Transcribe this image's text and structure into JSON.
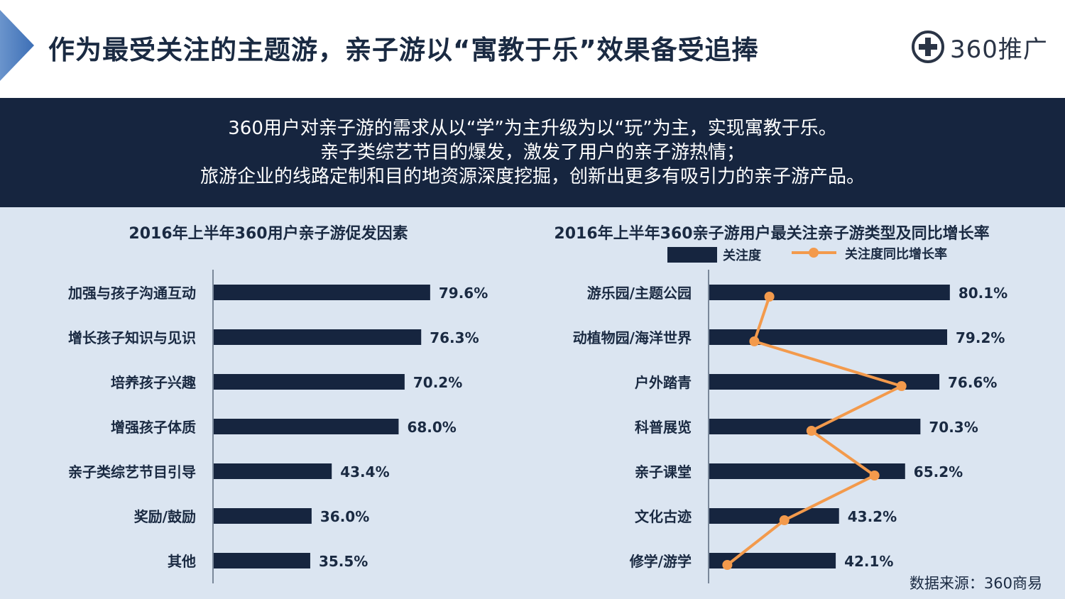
{
  "page": {
    "title": "作为最受关注的主题游，亲子游以“寓教于乐”效果备受追捧",
    "logo_text": "360推广",
    "summary_lines": [
      "360用户对亲子游的需求从以“学”为主升级为以“玩”为主，实现寓教于乐。",
      "亲子类综艺节目的爆发，激发了用户的亲子游热情；",
      "旅游企业的线路定制和目的地资源深度挖掘，创新出更多有吸引力的亲子游产品。"
    ],
    "source": "数据来源：360商易",
    "colors": {
      "bar": "#16253f",
      "line": "#f39a4c",
      "panel_bg": "#dbe5f1",
      "accent": "#3d6fb6"
    }
  },
  "chart_data": [
    {
      "type": "bar",
      "orientation": "horizontal",
      "title": "2016年上半年360用户亲子游促发因素",
      "categories": [
        "加强与孩子沟通互动",
        "增长孩子知识与见识",
        "培养孩子兴趣",
        "增强孩子体质",
        "亲子类综艺节目引导",
        "奖励/鼓励",
        "其他"
      ],
      "values": [
        79.6,
        76.3,
        70.2,
        68.0,
        43.4,
        36.0,
        35.5
      ],
      "labels": [
        "79.6%",
        "76.3%",
        "70.2%",
        "68.0%",
        "43.4%",
        "36.0%",
        "35.5%"
      ],
      "xlim": [
        0,
        100
      ],
      "unit": "%"
    },
    {
      "type": "bar+line",
      "orientation": "horizontal",
      "title": "2016年上半年360亲子游用户最关注亲子游类型及同比增长率",
      "legend": [
        "关注度",
        "关注度同比增长率"
      ],
      "legend_position": "top",
      "categories": [
        "游乐园/主题公园",
        "动植物园/海洋世界",
        "户外踏青",
        "科普展览",
        "亲子课堂",
        "文化古迹",
        "修学/游学"
      ],
      "series": [
        {
          "name": "关注度",
          "type": "bar",
          "values": [
            80.1,
            79.2,
            76.6,
            70.3,
            65.2,
            43.2,
            42.1
          ],
          "labels": [
            "80.1%",
            "79.2%",
            "76.6%",
            "70.3%",
            "65.2%",
            "43.2%",
            "42.1%"
          ]
        },
        {
          "name": "关注度同比增长率",
          "type": "line",
          "values": [
            20,
            15,
            64,
            34,
            55,
            25,
            6
          ]
        }
      ],
      "xlim": [
        0,
        100
      ],
      "unit": "%"
    }
  ]
}
